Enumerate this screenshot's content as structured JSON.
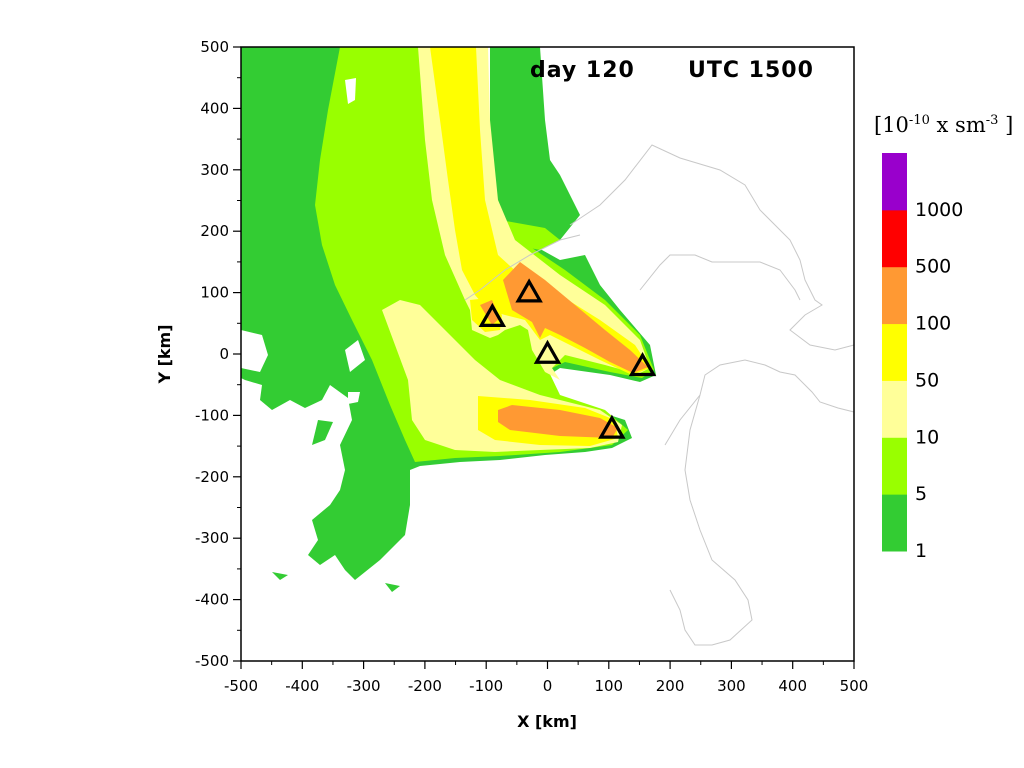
{
  "chart_data": {
    "type": "heatmap",
    "title_left": "day 120",
    "title_right": "UTC 1500",
    "xlabel": "X [km]",
    "ylabel": "Y [km]",
    "xlim": [
      -500,
      500
    ],
    "ylim": [
      -500,
      500
    ],
    "xticks": [
      "-500",
      "-400",
      "-300",
      "-200",
      "-100",
      "0",
      "100",
      "200",
      "300",
      "400",
      "500"
    ],
    "yticks": [
      "500",
      "400",
      "300",
      "200",
      "100",
      "0",
      "-100",
      "-200",
      "-300",
      "-400",
      "-500"
    ],
    "colorbar": {
      "unit_base": "[10",
      "unit_exp1": "-10",
      "unit_mid": " x sm",
      "unit_exp2": "-3",
      "unit_end": " ]",
      "levels": [
        {
          "label": "1",
          "color": "#33cc33"
        },
        {
          "label": "5",
          "color": "#99ff00"
        },
        {
          "label": "10",
          "color": "#ffff99"
        },
        {
          "label": "50",
          "color": "#ffff00"
        },
        {
          "label": "100",
          "color": "#ff9933"
        },
        {
          "label": "500",
          "color": "#ff0000"
        },
        {
          "label": "1000",
          "color": "#9900cc"
        }
      ]
    },
    "sources": [
      {
        "name": "source",
        "x": -30,
        "y": 100
      },
      {
        "name": "source",
        "x": -90,
        "y": 60
      },
      {
        "name": "source",
        "x": 0,
        "y": 0
      },
      {
        "name": "source",
        "x": 155,
        "y": -20
      },
      {
        "name": "source",
        "x": 105,
        "y": -122
      }
    ]
  }
}
